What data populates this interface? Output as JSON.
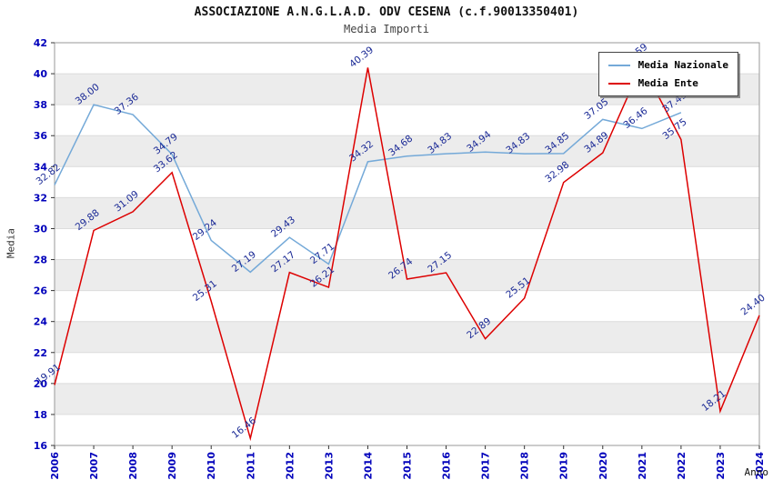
{
  "chart_data": {
    "type": "line",
    "title": "ASSOCIAZIONE A.N.G.L.A.D. ODV CESENA (c.f.90013350401)",
    "subtitle": "Media Importi",
    "xlabel": "Anno",
    "ylabel": "Media",
    "ylim": [
      16,
      42
    ],
    "ytick_step": 2,
    "grid": true,
    "alternating_bands": true,
    "legend_position": "top-right",
    "categories": [
      "2006",
      "2007",
      "2008",
      "2009",
      "2010",
      "2011",
      "2012",
      "2013",
      "2014",
      "2015",
      "2016",
      "2017",
      "2018",
      "2019",
      "2020",
      "2021",
      "2022",
      "2023",
      "2024"
    ],
    "series": [
      {
        "name": "Media Nazionale",
        "color": "#74a9d8",
        "values": [
          32.82,
          38.0,
          37.36,
          34.79,
          29.24,
          27.19,
          29.43,
          27.71,
          34.32,
          34.68,
          34.83,
          34.94,
          34.83,
          34.85,
          37.05,
          36.46,
          37.49
        ]
      },
      {
        "name": "Media Ente",
        "color": "#dd0000",
        "values": [
          19.91,
          29.88,
          31.09,
          33.62,
          25.31,
          16.46,
          27.17,
          26.21,
          40.39,
          26.74,
          27.15,
          22.89,
          25.51,
          32.98,
          34.89,
          40.59,
          35.75,
          18.21,
          24.4
        ]
      }
    ],
    "colors": {
      "band": "#ececec",
      "grid": "#dcdcdc",
      "frame": "#999999",
      "tick": "#333333",
      "tick_label": "#0000bb",
      "value_label": "#1b2a96"
    }
  }
}
